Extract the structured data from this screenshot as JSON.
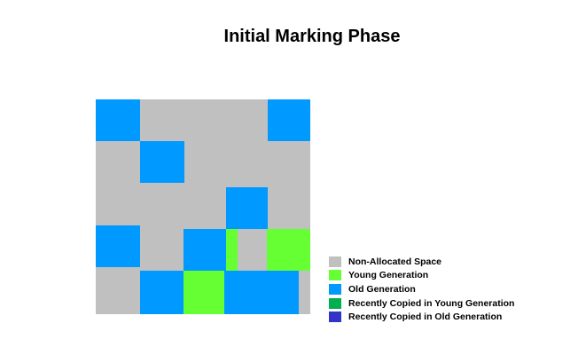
{
  "title": "Initial Marking Phase",
  "colors": {
    "non_allocated": "#c0c0c0",
    "young": "#66ff33",
    "old": "#0099ff",
    "recent_young": "#00b050",
    "recent_old": "#3333cc"
  },
  "legend": [
    {
      "label": "Non-Allocated Space",
      "color": "#c0c0c0"
    },
    {
      "label": "Young Generation",
      "color": "#66ff33"
    },
    {
      "label": "Old Generation",
      "color": "#0099ff"
    },
    {
      "label": "Recently Copied in Young Generation",
      "color": "#00b050"
    },
    {
      "label": "Recently Copied in Old Generation",
      "color": "#3333cc"
    }
  ],
  "heap_regions": [
    {
      "name": "old-region",
      "color": "#0099ff"
    },
    {
      "name": "old-region",
      "color": "#0099ff"
    },
    {
      "name": "old-region",
      "color": "#0099ff"
    },
    {
      "name": "old-region",
      "color": "#0099ff"
    },
    {
      "name": "old-region",
      "color": "#0099ff"
    },
    {
      "name": "old-region",
      "color": "#0099ff"
    },
    {
      "name": "old-region",
      "color": "#0099ff"
    },
    {
      "name": "old-region",
      "color": "#0099ff"
    },
    {
      "name": "young-region",
      "color": "#66ff33"
    },
    {
      "name": "young-region",
      "color": "#66ff33"
    },
    {
      "name": "young-region",
      "color": "#66ff33"
    }
  ]
}
